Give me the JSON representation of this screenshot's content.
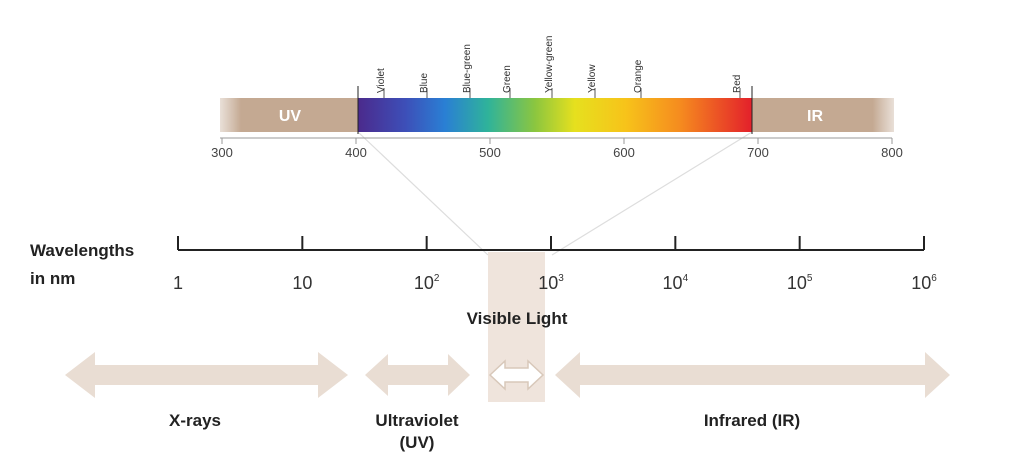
{
  "spectrum": {
    "uv": "UV",
    "ir": "IR",
    "colors": [
      "Violet",
      "Blue",
      "Blue-green",
      "Green",
      "Yellow-green",
      "Yellow",
      "Orange",
      "Red"
    ],
    "axis_ticks": [
      300,
      400,
      500,
      600,
      700,
      800
    ]
  },
  "scale": {
    "label": [
      "Wavelengths",
      "in nm"
    ],
    "ticks": [
      {
        "base": "1"
      },
      {
        "base": "10"
      },
      {
        "base": "10",
        "exp": "2"
      },
      {
        "base": "10",
        "exp": "3"
      },
      {
        "base": "10",
        "exp": "4"
      },
      {
        "base": "10",
        "exp": "5"
      },
      {
        "base": "10",
        "exp": "6"
      }
    ]
  },
  "visible_light": "Visible Light",
  "regions": [
    {
      "label": [
        "X-rays"
      ]
    },
    {
      "label": [
        "Ultraviolet",
        "(UV)"
      ]
    },
    {
      "label": [
        "Infrared (IR)"
      ]
    }
  ]
}
